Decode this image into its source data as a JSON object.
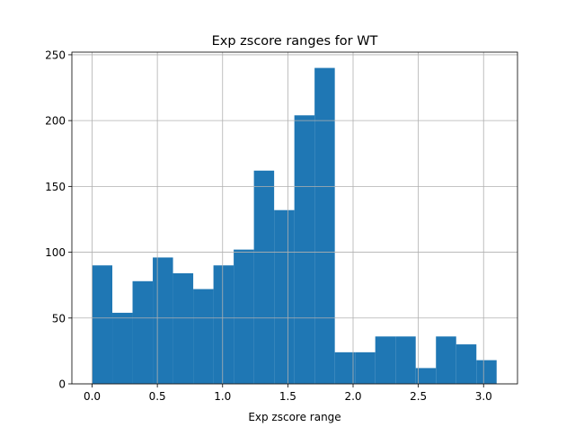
{
  "chart_data": {
    "type": "bar",
    "title": "Exp zscore ranges for WT",
    "xlabel": "Exp zscore range",
    "ylabel": "",
    "xlim": [
      -0.155,
      3.26
    ],
    "ylim": [
      0,
      252
    ],
    "grid": true,
    "color": "#1f77b4",
    "x_ticks": [
      0.0,
      0.5,
      1.0,
      1.5,
      2.0,
      2.5,
      3.0
    ],
    "x_tick_labels": [
      "0.0",
      "0.5",
      "1.0",
      "1.5",
      "2.0",
      "2.5",
      "3.0"
    ],
    "y_ticks": [
      0,
      50,
      100,
      150,
      200,
      250
    ],
    "y_tick_labels": [
      "0",
      "50",
      "100",
      "150",
      "200",
      "250"
    ],
    "bins": [
      {
        "x0": 0.0,
        "x1": 0.155,
        "value": 90
      },
      {
        "x0": 0.155,
        "x1": 0.31,
        "value": 54
      },
      {
        "x0": 0.31,
        "x1": 0.465,
        "value": 78
      },
      {
        "x0": 0.465,
        "x1": 0.62,
        "value": 96
      },
      {
        "x0": 0.62,
        "x1": 0.775,
        "value": 84
      },
      {
        "x0": 0.775,
        "x1": 0.93,
        "value": 72
      },
      {
        "x0": 0.93,
        "x1": 1.085,
        "value": 90
      },
      {
        "x0": 1.085,
        "x1": 1.24,
        "value": 102
      },
      {
        "x0": 1.24,
        "x1": 1.395,
        "value": 162
      },
      {
        "x0": 1.395,
        "x1": 1.55,
        "value": 132
      },
      {
        "x0": 1.55,
        "x1": 1.705,
        "value": 204
      },
      {
        "x0": 1.705,
        "x1": 1.86,
        "value": 240
      },
      {
        "x0": 1.86,
        "x1": 2.015,
        "value": 24
      },
      {
        "x0": 2.015,
        "x1": 2.17,
        "value": 24
      },
      {
        "x0": 2.17,
        "x1": 2.325,
        "value": 36
      },
      {
        "x0": 2.325,
        "x1": 2.48,
        "value": 36
      },
      {
        "x0": 2.48,
        "x1": 2.635,
        "value": 12
      },
      {
        "x0": 2.635,
        "x1": 2.79,
        "value": 36
      },
      {
        "x0": 2.79,
        "x1": 2.945,
        "value": 30
      },
      {
        "x0": 2.945,
        "x1": 3.1,
        "value": 18
      }
    ]
  }
}
